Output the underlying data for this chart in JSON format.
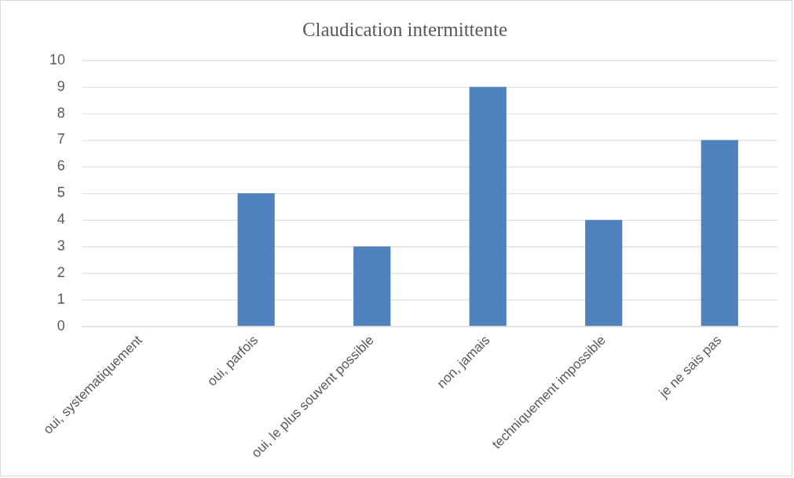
{
  "chart_data": {
    "type": "bar",
    "title": "Claudication intermittente",
    "categories": [
      "oui, systematiquement",
      "oui, parfois",
      "oui, le plus souvent possible",
      "non, jamais",
      "techniquement impossible",
      "je ne sais pas"
    ],
    "values": [
      0,
      5,
      3,
      9,
      4,
      7
    ],
    "color": "#4f81bd",
    "ylim": [
      0,
      10
    ],
    "yticks": [
      0,
      1,
      2,
      3,
      4,
      5,
      6,
      7,
      8,
      9,
      10
    ],
    "grid": "y",
    "legend": false
  }
}
